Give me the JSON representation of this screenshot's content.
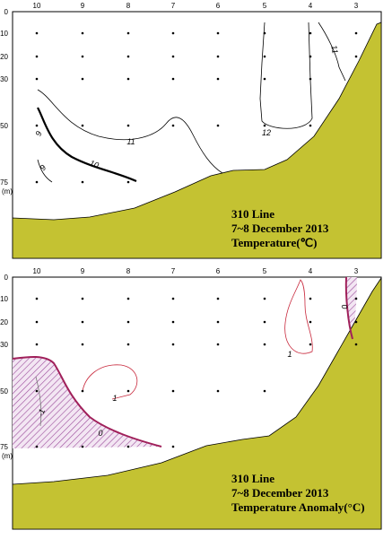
{
  "panels": [
    {
      "stations": [
        "10",
        "9",
        "8",
        "7",
        "6",
        "5",
        "4",
        "3"
      ],
      "depths": [
        "0",
        "10",
        "20",
        "30",
        "50",
        "75"
      ],
      "depth_unit": "(m)",
      "contour_labels": [
        "9",
        "9",
        "10",
        "11",
        "12",
        "11"
      ],
      "title": [
        "310 Line",
        "7~8 December 2013",
        "Temperature(℃)"
      ]
    },
    {
      "stations": [
        "10",
        "9",
        "8",
        "7",
        "6",
        "5",
        "4",
        "3"
      ],
      "depths": [
        "0",
        "10",
        "20",
        "30",
        "50",
        "75"
      ],
      "depth_unit": "(m)",
      "contour_labels": [
        "-1",
        "0",
        "1",
        "1",
        "0"
      ],
      "title": [
        "310 Line",
        "7~8 December 2013",
        "Temperature Anomaly(°C)"
      ]
    }
  ]
}
